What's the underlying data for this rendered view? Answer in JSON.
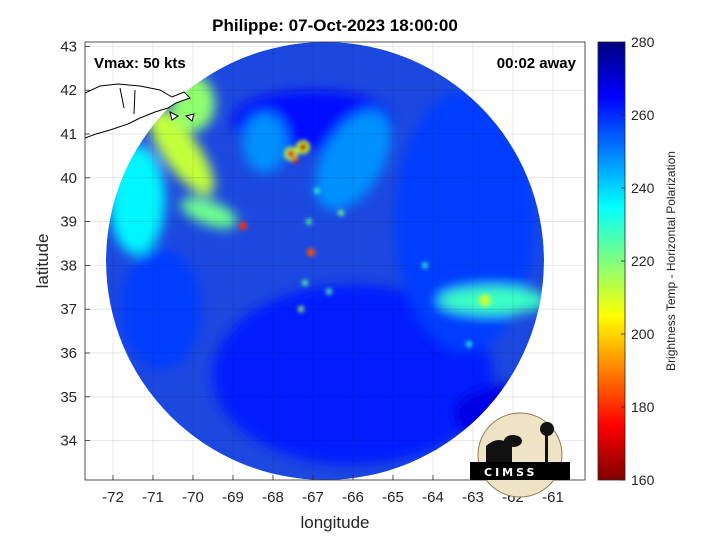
{
  "chart_data": {
    "type": "heatmap",
    "title": "Philippe: 07-Oct-2023 18:00:00",
    "xlabel": "longitude",
    "ylabel": "latitude",
    "xlim": [
      -72.7,
      -60.2
    ],
    "ylim": [
      33.1,
      43.1
    ],
    "xticks": [
      -72,
      -71,
      -70,
      -69,
      -68,
      -67,
      -66,
      -65,
      -64,
      -63,
      -62,
      -61
    ],
    "yticks": [
      34,
      35,
      36,
      37,
      38,
      39,
      40,
      41,
      42,
      43
    ],
    "grid": true,
    "colorbar": {
      "label": "Brightness Temp - Horizontal Polarization",
      "range": [
        160,
        280
      ],
      "ticks": [
        160,
        180,
        200,
        220,
        240,
        260,
        280
      ],
      "colormap": "jet"
    },
    "annotations": {
      "vmax": "Vmax: 50 kts",
      "time_offset": "00:02 away"
    },
    "swath": {
      "center_lon": -66.7,
      "center_lat": 38.1,
      "radius_deg_lat": 5.0
    },
    "features": [
      {
        "name": "convective cores",
        "lon": -67.5,
        "lat": 40.6,
        "tb": 165
      },
      {
        "name": "cold spot",
        "lon": -68.8,
        "lat": 38.9,
        "tb": 175
      },
      {
        "name": "cold spot",
        "lon": -67.1,
        "lat": 38.3,
        "tb": 178
      },
      {
        "name": "warm band",
        "lon": -70.2,
        "lat": 40.3,
        "tb": 205
      },
      {
        "name": "warm band",
        "lon": -62.8,
        "lat": 37.2,
        "tb": 215
      }
    ]
  },
  "logo": {
    "text": "CIMSS"
  }
}
